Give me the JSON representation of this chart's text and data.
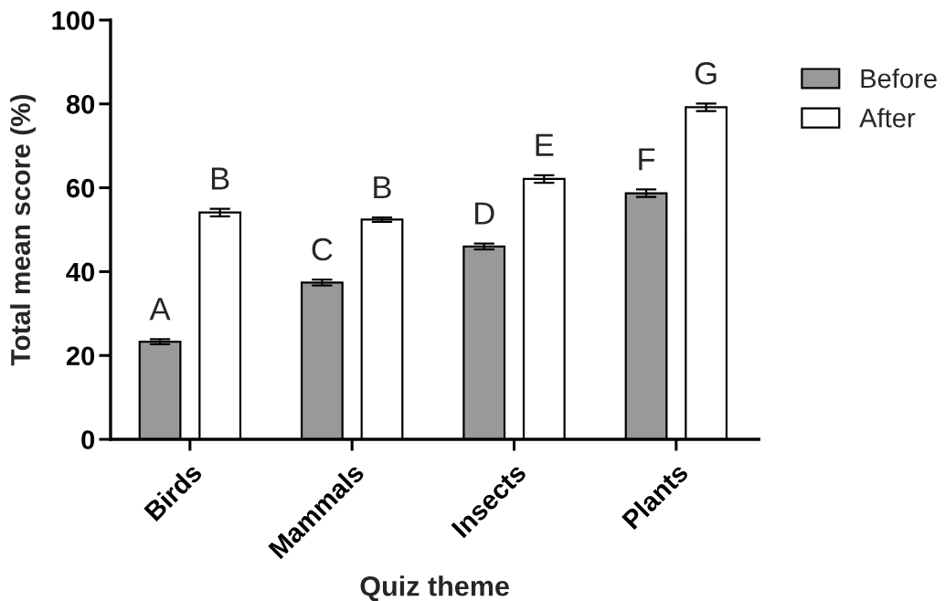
{
  "chart_data": {
    "type": "bar",
    "xlabel": "Quiz theme",
    "ylabel": "Total mean score (%)",
    "categories": [
      "Birds",
      "Mammals",
      "Insects",
      "Plants"
    ],
    "series": [
      {
        "name": "Before",
        "color": "#999999",
        "values": [
          23.3,
          37.4,
          46.0,
          58.7
        ],
        "errors": [
          0.6,
          0.7,
          0.7,
          0.9
        ]
      },
      {
        "name": "After",
        "color": "#ffffff",
        "values": [
          54.1,
          52.4,
          62.1,
          79.2
        ],
        "errors": [
          0.9,
          0.5,
          0.9,
          0.9
        ]
      }
    ],
    "ylim": [
      0,
      100
    ],
    "yticks": [
      0,
      20,
      40,
      60,
      80,
      100
    ],
    "legend": "top right",
    "annotations": [
      "A",
      "B",
      "C",
      "B",
      "D",
      "E",
      "F",
      "G"
    ]
  }
}
